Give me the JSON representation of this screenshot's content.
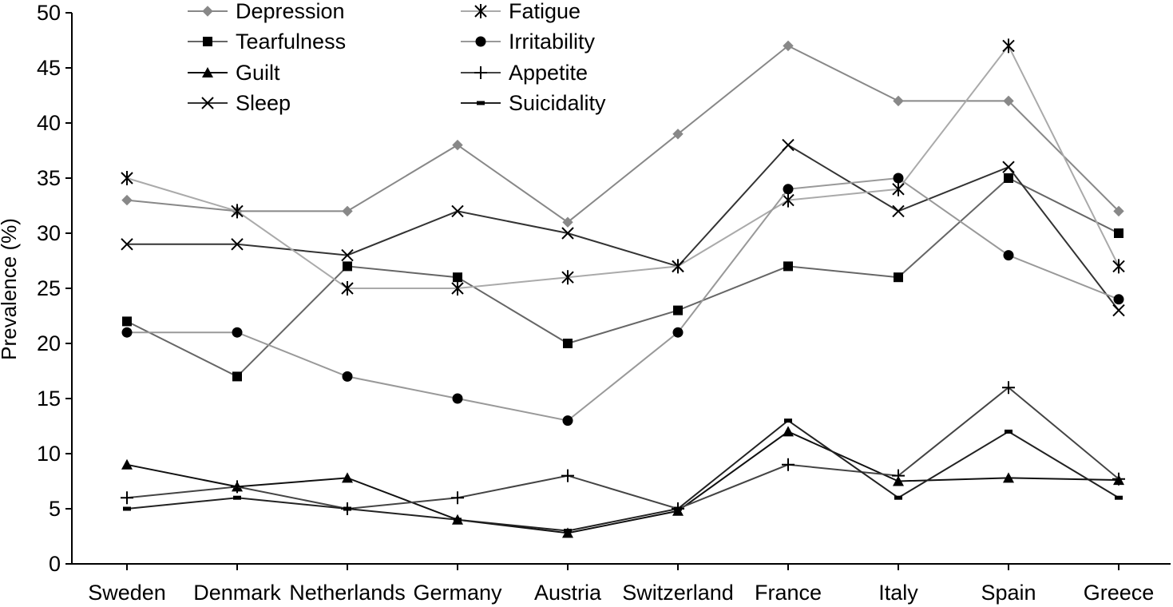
{
  "chart_data": {
    "type": "line",
    "title": "",
    "xlabel": "",
    "ylabel": "Prevalence (%)",
    "ylim": [
      0,
      50
    ],
    "yticks": [
      0,
      5,
      10,
      15,
      20,
      25,
      30,
      35,
      40,
      45,
      50
    ],
    "grid": false,
    "legend_position": "top",
    "categories": [
      "Sweden",
      "Denmark",
      "Netherlands",
      "Germany",
      "Austria",
      "Switzerland",
      "France",
      "Italy",
      "Spain",
      "Greece"
    ],
    "series": [
      {
        "name": "Depression",
        "marker": "diamond",
        "color": "#888888",
        "values": [
          33,
          32,
          32,
          38,
          31,
          39,
          47,
          42,
          42,
          32
        ]
      },
      {
        "name": "Tearfulness",
        "marker": "square",
        "color": "#666666",
        "values": [
          22,
          17,
          27,
          26,
          20,
          23,
          27,
          26,
          35,
          30
        ]
      },
      {
        "name": "Guilt",
        "marker": "triangle",
        "color": "#111111",
        "values": [
          9,
          7,
          7.8,
          4,
          2.8,
          4.8,
          12,
          7.5,
          7.8,
          7.6
        ]
      },
      {
        "name": "Sleep",
        "marker": "x",
        "color": "#333333",
        "values": [
          29,
          29,
          28,
          32,
          30,
          27,
          38,
          32,
          36,
          23
        ]
      },
      {
        "name": "Fatigue",
        "marker": "asterisk",
        "color": "#aaaaaa",
        "values": [
          35,
          32,
          25,
          25,
          26,
          27,
          33,
          34,
          47,
          27
        ]
      },
      {
        "name": "Irritability",
        "marker": "circle",
        "color": "#999999",
        "values": [
          21,
          21,
          17,
          15,
          13,
          21,
          34,
          35,
          28,
          24
        ]
      },
      {
        "name": "Appetite",
        "marker": "plus",
        "color": "#444444",
        "values": [
          6,
          7,
          5,
          6,
          8,
          5,
          9,
          8,
          16,
          7.7
        ]
      },
      {
        "name": "Suicidality",
        "marker": "dash",
        "color": "#222222",
        "values": [
          5,
          6,
          5,
          4,
          3,
          5,
          13,
          6,
          12,
          6
        ]
      }
    ]
  }
}
